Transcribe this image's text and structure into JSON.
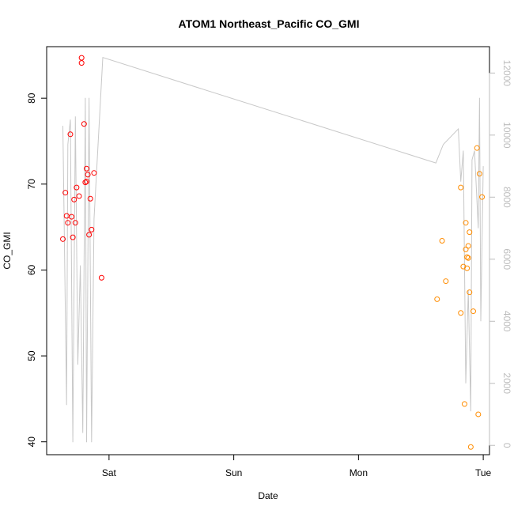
{
  "chart_data": {
    "type": "scatter",
    "title": "ATOM1 Northeast_Pacific CO_GMI",
    "xlabel": "Date",
    "ylabel": "CO_GMI",
    "x_ticks": [
      "Sat",
      "Sun",
      "Mon",
      "Tue"
    ],
    "x_tick_times": [
      1,
      2,
      3,
      4
    ],
    "xlim": [
      0.5,
      4.05
    ],
    "ylim": [
      38.5,
      86.0
    ],
    "y_ticks": [
      40,
      50,
      60,
      70,
      80
    ],
    "ylim_right": [
      -300,
      12850
    ],
    "y_ticks_right": [
      0,
      2000,
      4000,
      6000,
      8000,
      10000,
      12000
    ],
    "grid": false,
    "series": [
      {
        "role": "points-group-1",
        "color": "#ff0000",
        "marker": "circle-open",
        "points": [
          [
            0.63,
            63.6
          ],
          [
            0.65,
            69.0
          ],
          [
            0.66,
            66.3
          ],
          [
            0.67,
            65.5
          ],
          [
            0.69,
            75.8
          ],
          [
            0.7,
            66.2
          ],
          [
            0.71,
            63.8
          ],
          [
            0.72,
            68.2
          ],
          [
            0.73,
            65.5
          ],
          [
            0.74,
            69.6
          ],
          [
            0.76,
            68.6
          ],
          [
            0.78,
            84.7
          ],
          [
            0.78,
            84.1
          ],
          [
            0.8,
            77.0
          ],
          [
            0.81,
            70.2
          ],
          [
            0.82,
            71.8
          ],
          [
            0.82,
            70.3
          ],
          [
            0.83,
            71.1
          ],
          [
            0.84,
            64.1
          ],
          [
            0.85,
            68.3
          ],
          [
            0.86,
            64.7
          ],
          [
            0.88,
            71.3
          ],
          [
            0.94,
            59.1
          ]
        ]
      },
      {
        "role": "points-group-2",
        "color": "#ff8c00",
        "marker": "circle-open",
        "points": [
          [
            3.63,
            56.6
          ],
          [
            3.67,
            63.4
          ],
          [
            3.7,
            58.7
          ],
          [
            3.82,
            55.0
          ],
          [
            3.82,
            69.6
          ],
          [
            3.84,
            60.4
          ],
          [
            3.85,
            44.4
          ],
          [
            3.86,
            65.5
          ],
          [
            3.86,
            62.4
          ],
          [
            3.87,
            61.5
          ],
          [
            3.87,
            60.2
          ],
          [
            3.88,
            61.4
          ],
          [
            3.88,
            62.8
          ],
          [
            3.89,
            64.4
          ],
          [
            3.89,
            57.4
          ],
          [
            3.9,
            39.4
          ],
          [
            3.92,
            55.2
          ],
          [
            3.95,
            74.2
          ],
          [
            3.96,
            43.2
          ],
          [
            3.97,
            71.2
          ],
          [
            3.99,
            68.5
          ]
        ]
      },
      {
        "role": "line-right-axis",
        "color": "#c8c8c8",
        "axis": "right",
        "points": [
          [
            0.63,
            10300
          ],
          [
            0.66,
            1300
          ],
          [
            0.67,
            9700
          ],
          [
            0.69,
            10500
          ],
          [
            0.71,
            100
          ],
          [
            0.73,
            10600
          ],
          [
            0.75,
            2600
          ],
          [
            0.77,
            5800
          ],
          [
            0.79,
            400
          ],
          [
            0.81,
            11200
          ],
          [
            0.82,
            100
          ],
          [
            0.84,
            11200
          ],
          [
            0.86,
            100
          ],
          [
            0.88,
            7300
          ],
          [
            0.95,
            12500
          ],
          [
            3.62,
            9100
          ],
          [
            3.68,
            9700
          ],
          [
            3.8,
            10200
          ],
          [
            3.82,
            8500
          ],
          [
            3.84,
            9500
          ],
          [
            3.86,
            2000
          ],
          [
            3.88,
            5000
          ],
          [
            3.9,
            1100
          ],
          [
            3.91,
            9200
          ],
          [
            3.93,
            9500
          ],
          [
            3.96,
            7000
          ],
          [
            3.97,
            11200
          ],
          [
            3.98,
            4000
          ],
          [
            4.0,
            9000
          ]
        ]
      }
    ]
  }
}
